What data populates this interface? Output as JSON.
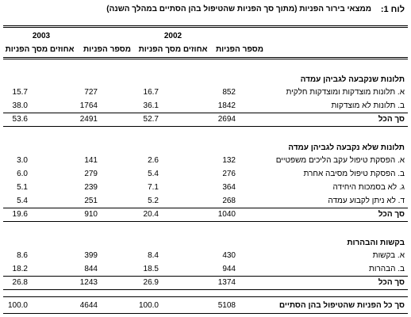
{
  "table": {
    "title_label": "לוח 1:",
    "title": "ממצאי בירור הפניות (מתוך סך הפניות שהטיפול בהן הסתיים במהלך השנה)",
    "years": [
      "2002",
      "2003"
    ],
    "column_headers": [
      "מספר הפניות",
      "אחוזים מסך הפניות",
      "מספר הפניות",
      "אחוזים מסך הפניות"
    ],
    "sections": [
      {
        "heading": "תלונות שנקבעה לגביהן עמדה",
        "rows": [
          {
            "label": "א. תלונות מוצדקות ומוצדקות חלקית",
            "values": [
              "852",
              "16.7",
              "727",
              "15.7"
            ]
          },
          {
            "label": "ב. תלונות לא מוצדקות",
            "values": [
              "1842",
              "36.1",
              "1764",
              "38.0"
            ]
          }
        ],
        "total": {
          "label": "סך הכל",
          "values": [
            "2694",
            "52.7",
            "2491",
            "53.6"
          ]
        }
      },
      {
        "heading": "תלונות שלא נקבעה לגביהן עמדה",
        "rows": [
          {
            "label": "א. הפסקת טיפול עקב הליכים משפטיים",
            "values": [
              "132",
              "2.6",
              "141",
              "3.0"
            ]
          },
          {
            "label": "ב. הפסקת טיפול מסיבה אחרת",
            "values": [
              "276",
              "5.4",
              "279",
              "6.0"
            ]
          },
          {
            "label": "ג. לא בסמכות היחידה",
            "values": [
              "364",
              "7.1",
              "239",
              "5.1"
            ]
          },
          {
            "label": "ד. לא ניתן לקבוע עמדה",
            "values": [
              "268",
              "5.2",
              "251",
              "5.4"
            ]
          }
        ],
        "total": {
          "label": "סך הכל",
          "values": [
            "1040",
            "20.4",
            "910",
            "19.6"
          ]
        }
      },
      {
        "heading": "בקשות והבהרות",
        "rows": [
          {
            "label": "א. בקשות",
            "values": [
              "430",
              "8.4",
              "399",
              "8.6"
            ]
          },
          {
            "label": "ב. הבהרות",
            "values": [
              "944",
              "18.5",
              "844",
              "18.2"
            ]
          }
        ],
        "total": {
          "label": "סך הכל",
          "values": [
            "1374",
            "26.9",
            "1243",
            "26.8"
          ]
        }
      }
    ],
    "grand_total": {
      "label": "סך כל הפניות שהטיפול בהן הסתיים",
      "values": [
        "5108",
        "100.0",
        "4644",
        "100.0"
      ]
    }
  }
}
